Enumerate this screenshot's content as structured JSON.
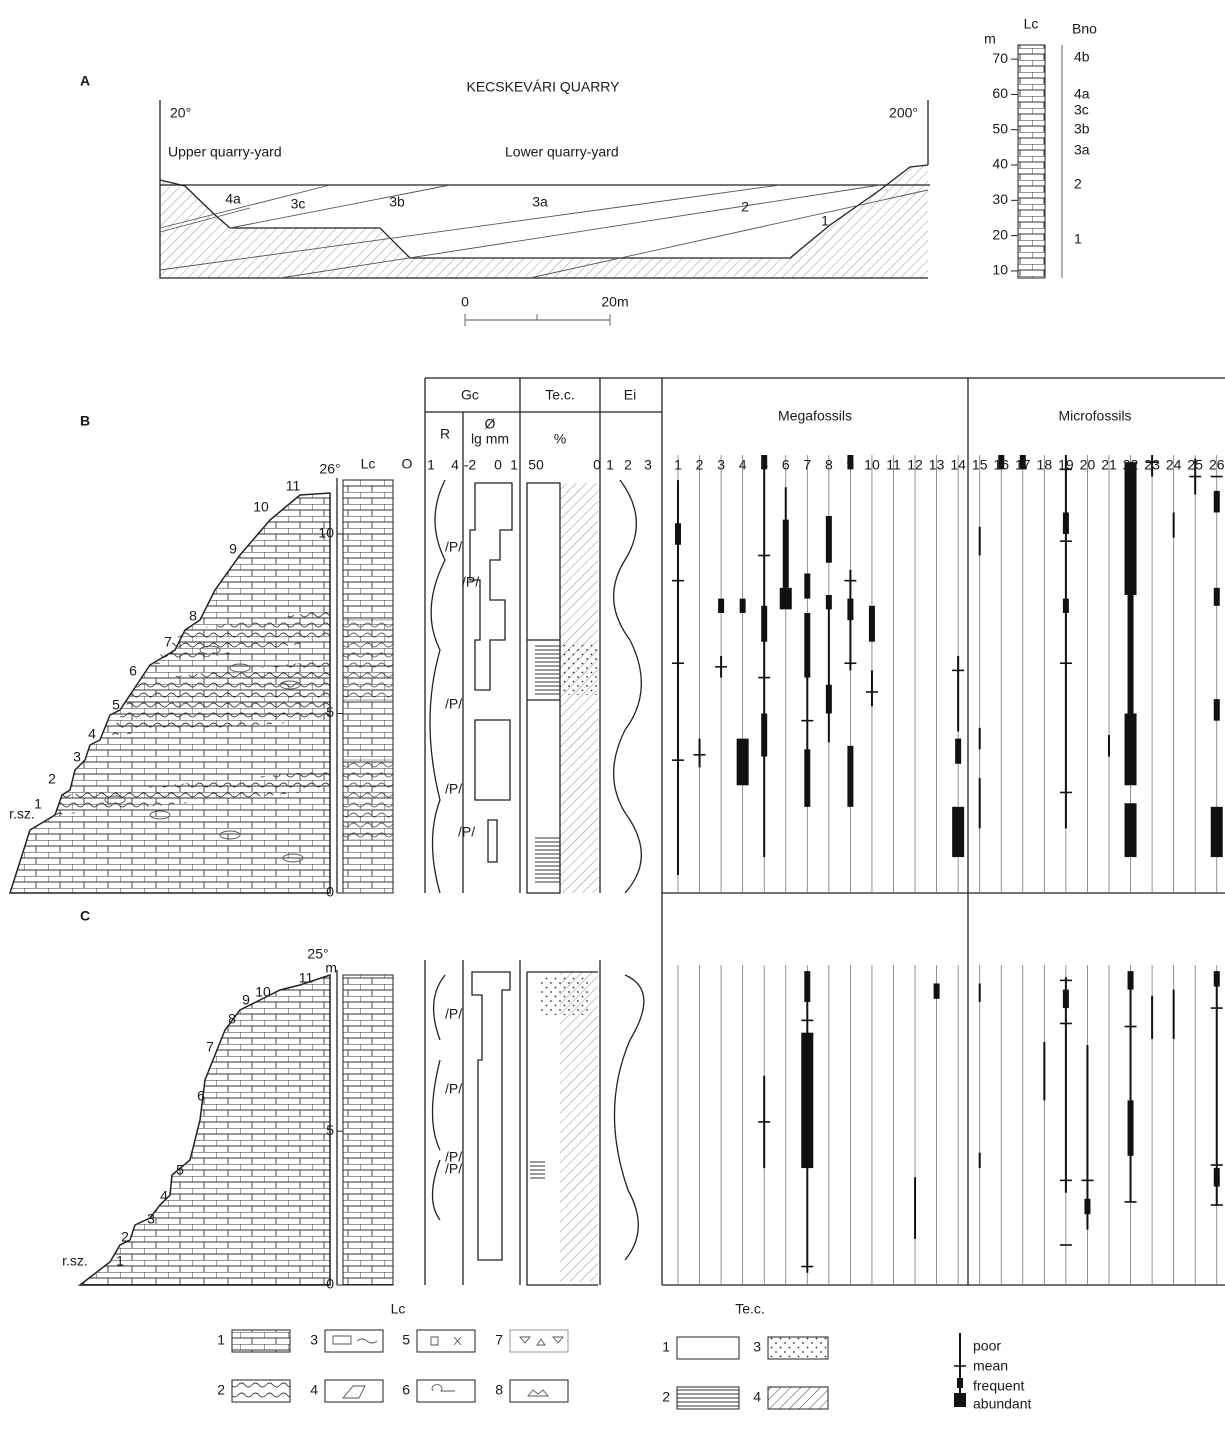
{
  "panel_a": {
    "label": "A",
    "title": "KECSKEVÁRI QUARRY",
    "left_bearing": "20°",
    "right_bearing": "200°",
    "upper_yard": "Upper quarry-yard",
    "lower_yard": "Lower quarry-yard",
    "beds": [
      "4a",
      "3c",
      "3b",
      "3a",
      "2",
      "1"
    ],
    "scale": [
      "0",
      "20m"
    ],
    "column": {
      "title": "Lc",
      "unit": "m",
      "units_title": "Bno",
      "ylim": [
        8,
        74
      ],
      "yticks": [
        10,
        20,
        30,
        40,
        50,
        60,
        70
      ],
      "units": [
        "4b",
        "4a",
        "3c",
        "3b",
        "3a",
        "2",
        "1"
      ]
    }
  },
  "panel_b": {
    "label": "B",
    "bearing": "26°",
    "lc": "Lc",
    "o": "O",
    "gc": "Gc",
    "r": "R",
    "r_scale": [
      "1",
      "4"
    ],
    "diameter": "Ø",
    "diameter_unit": "lg mm",
    "gc_scale": [
      "-2",
      "0",
      "1"
    ],
    "tec": "Te.c.",
    "tec_unit": "%",
    "tec_scale": [
      "50",
      "0"
    ],
    "ei": "Ei",
    "ei_scale": [
      "1",
      "2",
      "3"
    ],
    "megafossils": "Megafossils",
    "microfossils": "Microfossils",
    "beds": [
      "1",
      "2",
      "3",
      "4",
      "5",
      "6",
      "7",
      "8",
      "9",
      "10",
      "11"
    ],
    "base": "r.sz.",
    "ylim": [
      0,
      12.2
    ],
    "yticks": [
      0,
      5,
      10
    ],
    "p_marks": [
      "/P/",
      "/P/",
      "/P/",
      "/P/",
      "/P/"
    ],
    "columns": [
      1,
      2,
      3,
      4,
      5,
      6,
      7,
      8,
      9,
      10,
      11,
      12,
      13,
      14,
      15,
      16,
      17,
      18,
      19,
      20,
      21,
      22,
      23,
      24,
      25,
      26
    ],
    "occurrences": [
      [
        [
          0.5,
          11.5,
          0
        ],
        [
          9.7,
          10.3,
          2
        ],
        [
          8.7,
          8.7,
          1
        ],
        [
          6.4,
          6.4,
          1
        ],
        [
          3.7,
          3.7,
          1
        ]
      ],
      [
        [
          3.5,
          4.3,
          0
        ],
        [
          3.85,
          3.85,
          1
        ]
      ],
      [
        [
          7.8,
          8.2,
          2
        ],
        [
          6.0,
          6.6,
          0
        ],
        [
          6.3,
          6.3,
          1
        ]
      ],
      [
        [
          7.8,
          8.2,
          2
        ],
        [
          3.0,
          4.3,
          3
        ]
      ],
      [
        [
          1.0,
          12.2,
          0
        ],
        [
          11.8,
          12.2,
          2
        ],
        [
          9.4,
          9.4,
          1
        ],
        [
          7.0,
          8.0,
          2
        ],
        [
          6.0,
          6.0,
          1
        ],
        [
          3.8,
          5.0,
          2
        ]
      ],
      [
        [
          8.0,
          11.3,
          0
        ],
        [
          8.5,
          10.4,
          2
        ],
        [
          7.9,
          8.5,
          3
        ]
      ],
      [
        [
          2.4,
          7.8,
          0
        ],
        [
          8.2,
          8.9,
          2
        ],
        [
          6.0,
          7.8,
          2
        ],
        [
          4.8,
          4.8,
          1
        ],
        [
          2.4,
          4.0,
          2
        ]
      ],
      [
        [
          4.2,
          8.3,
          0
        ],
        [
          9.2,
          10.5,
          2
        ],
        [
          7.9,
          8.3,
          2
        ],
        [
          5.0,
          5.8,
          2
        ]
      ],
      [
        [
          6.2,
          9.0,
          0
        ],
        [
          11.8,
          12.2,
          2
        ],
        [
          8.7,
          8.7,
          1
        ],
        [
          7.6,
          8.2,
          2
        ],
        [
          6.4,
          6.4,
          1
        ],
        [
          2.4,
          4.1,
          2
        ]
      ],
      [
        [
          5.2,
          6.2,
          0
        ],
        [
          7.0,
          8.0,
          2
        ],
        [
          5.6,
          5.6,
          1
        ]
      ],
      [],
      [],
      [],
      [
        [
          4.5,
          6.6,
          0
        ],
        [
          6.2,
          6.2,
          1
        ],
        [
          3.6,
          4.3,
          2
        ],
        [
          1.0,
          2.4,
          3
        ]
      ],
      [
        [
          9.4,
          10.2,
          0
        ],
        [
          4.0,
          4.6,
          0
        ],
        [
          1.8,
          3.2,
          0
        ]
      ],
      [
        [
          11.8,
          12.2,
          2
        ]
      ],
      [
        [
          11.8,
          12.2,
          2
        ]
      ],
      [],
      [
        [
          1.8,
          12.2,
          0
        ],
        [
          11.8,
          11.8,
          1
        ],
        [
          10.0,
          10.6,
          2
        ],
        [
          9.8,
          9.8,
          1
        ],
        [
          7.8,
          8.2,
          2
        ],
        [
          6.4,
          6.4,
          1
        ],
        [
          2.8,
          2.8,
          1
        ]
      ],
      [],
      [
        [
          3.8,
          4.4,
          0
        ]
      ],
      [
        [
          1.0,
          2.5,
          3
        ],
        [
          3.0,
          5.0,
          3
        ],
        [
          5.0,
          8.3,
          2
        ],
        [
          8.3,
          12.0,
          3
        ]
      ],
      [
        [
          11.6,
          12.2,
          0
        ],
        [
          12.0,
          12.0,
          1
        ]
      ],
      [
        [
          9.9,
          10.6,
          0
        ]
      ],
      [
        [
          11.1,
          12.1,
          0
        ],
        [
          11.6,
          11.6,
          1
        ]
      ],
      [
        [
          10.6,
          11.2,
          2
        ],
        [
          11.6,
          11.6,
          1
        ],
        [
          8.0,
          8.5,
          2
        ],
        [
          4.8,
          5.4,
          2
        ],
        [
          1.0,
          2.4,
          3
        ]
      ]
    ]
  },
  "panel_c": {
    "label": "C",
    "bearing": "25°",
    "unit": "m",
    "beds": [
      "1",
      "2",
      "3",
      "4",
      "5",
      "6",
      "7",
      "8",
      "9",
      "10",
      "11"
    ],
    "base": "r.sz.",
    "ylim": [
      0,
      10.4
    ],
    "yticks": [
      0,
      5
    ],
    "p_marks": [
      "/P/",
      "/P/",
      "/P/",
      "/P/"
    ],
    "occurrences": [
      [],
      [],
      [],
      [],
      [
        [
          3.8,
          6.8,
          0
        ],
        [
          5.3,
          5.3,
          1
        ]
      ],
      [],
      [
        [
          0.4,
          10.2,
          0
        ],
        [
          9.2,
          10.2,
          2
        ],
        [
          3.8,
          8.2,
          3
        ],
        [
          8.6,
          8.6,
          1
        ],
        [
          0.6,
          0.6,
          1
        ]
      ],
      [],
      [],
      [],
      [],
      [
        [
          1.5,
          3.5,
          0
        ]
      ],
      [
        [
          9.3,
          9.8,
          2
        ]
      ],
      [],
      [
        [
          9.2,
          9.8,
          0
        ],
        [
          3.8,
          4.3,
          0
        ]
      ],
      [],
      [],
      [
        [
          6.0,
          7.9,
          0
        ]
      ],
      [
        [
          3.0,
          10.0,
          0
        ],
        [
          9.0,
          9.6,
          2
        ],
        [
          9.9,
          9.9,
          1
        ],
        [
          8.5,
          8.5,
          1
        ],
        [
          3.4,
          3.4,
          1
        ],
        [
          1.3,
          1.3,
          1
        ]
      ],
      [
        [
          1.8,
          7.8,
          0
        ],
        [
          2.3,
          2.8,
          2
        ],
        [
          3.4,
          3.4,
          1
        ]
      ],
      [],
      [
        [
          2.7,
          10.2,
          0
        ],
        [
          9.6,
          10.2,
          2
        ],
        [
          8.4,
          8.4,
          1
        ],
        [
          4.2,
          6.0,
          2
        ],
        [
          2.7,
          2.7,
          1
        ]
      ],
      [
        [
          8.0,
          9.4,
          0
        ]
      ],
      [
        [
          8.0,
          9.6,
          0
        ]
      ],
      [],
      [
        [
          2.6,
          10.2,
          0
        ],
        [
          9.7,
          10.2,
          2
        ],
        [
          9.0,
          9.0,
          1
        ],
        [
          3.2,
          3.8,
          2
        ],
        [
          3.9,
          3.9,
          1
        ],
        [
          2.6,
          2.6,
          1
        ]
      ]
    ]
  },
  "legend": {
    "lc_title": "Lc",
    "lc_items": [
      "1",
      "2",
      "3",
      "4",
      "5",
      "6",
      "7",
      "8"
    ],
    "tec_title": "Te.c.",
    "tec_items": [
      "1",
      "2",
      "3",
      "4"
    ],
    "abundance": [
      "poor",
      "mean",
      "frequent",
      "abundant"
    ]
  }
}
